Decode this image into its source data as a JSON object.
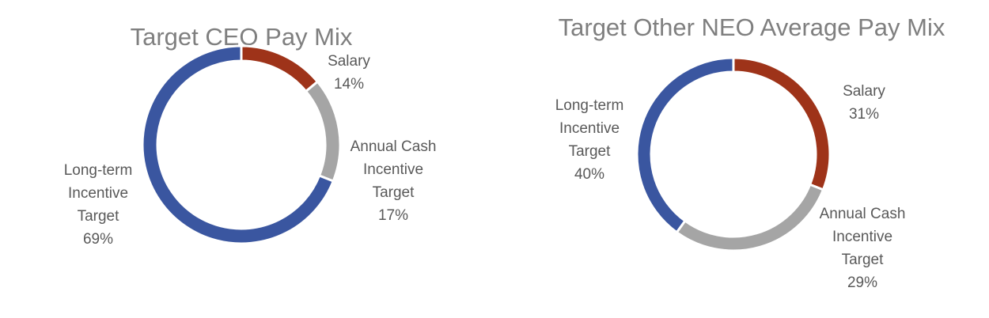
{
  "chart_data": [
    {
      "type": "pie",
      "variant": "donut",
      "title": "Target CEO Pay Mix",
      "slices": [
        {
          "label_lines": [
            "Salary",
            "14%"
          ],
          "name": "Salary",
          "value": 14,
          "color": "#9e3319"
        },
        {
          "label_lines": [
            "Annual Cash",
            "Incentive",
            "Target",
            "17%"
          ],
          "name": "Annual Cash Incentive Target",
          "value": 17,
          "color": "#a5a5a5"
        },
        {
          "label_lines": [
            "Long-term",
            "Incentive",
            "Target",
            "69%"
          ],
          "name": "Long-term Incentive Target",
          "value": 69,
          "color": "#3a56a0"
        }
      ]
    },
    {
      "type": "pie",
      "variant": "donut",
      "title": "Target Other NEO Average Pay Mix",
      "slices": [
        {
          "label_lines": [
            "Salary",
            "31%"
          ],
          "name": "Salary",
          "value": 31,
          "color": "#9e3319"
        },
        {
          "label_lines": [
            "Annual Cash",
            "Incentive",
            "Target",
            "29%"
          ],
          "name": "Annual Cash Incentive Target",
          "value": 29,
          "color": "#a5a5a5"
        },
        {
          "label_lines": [
            "Long-term",
            "Incentive",
            "Target",
            "40%"
          ],
          "name": "Long-term Incentive Target",
          "value": 40,
          "color": "#3a56a0"
        }
      ]
    }
  ]
}
